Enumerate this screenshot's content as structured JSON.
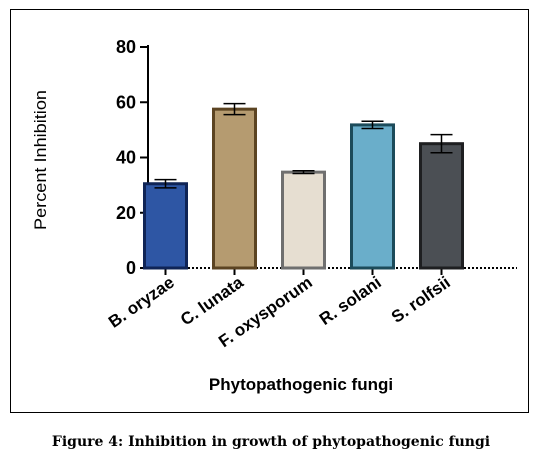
{
  "chart_data": {
    "type": "bar",
    "ylabel": "Percent Inhibition",
    "xlabel": "Phytopathogenic fungi",
    "ylim": [
      0,
      80
    ],
    "yticks": [
      0,
      20,
      40,
      60,
      80
    ],
    "grid": false,
    "legend": "none",
    "categories": [
      "B. oryzae",
      "C. lunata",
      "F. oxysporum",
      "R. solani",
      "S. rolfsii"
    ],
    "values": [
      30.5,
      57.5,
      34.7,
      51.8,
      45.0
    ],
    "errors": [
      1.5,
      2.0,
      0.5,
      1.3,
      3.3
    ],
    "colors": [
      {
        "fill": "#2e56a4",
        "edge": "#0f2456"
      },
      {
        "fill": "#b59b70",
        "edge": "#5c4422"
      },
      {
        "fill": "#e6ded1",
        "edge": "#6f6f6f"
      },
      {
        "fill": "#6aaeca",
        "edge": "#1c4b5a"
      },
      {
        "fill": "#4b4f54",
        "edge": "#1e1f21"
      }
    ]
  },
  "caption": "Figure 4: Inhibition in growth of phytopathogenic fungi"
}
